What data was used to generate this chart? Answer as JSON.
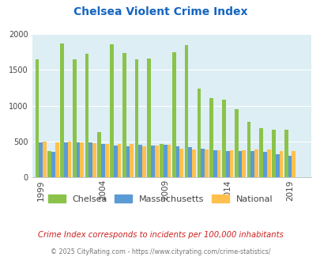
{
  "title": "Chelsea Violent Crime Index",
  "subtitle": "Crime Index corresponds to incidents per 100,000 inhabitants",
  "footer": "© 2025 CityRating.com - https://www.cityrating.com/crime-statistics/",
  "years": [
    1999,
    2000,
    2001,
    2002,
    2003,
    2004,
    2005,
    2006,
    2007,
    2008,
    2009,
    2010,
    2011,
    2012,
    2013,
    2014,
    2015,
    2016,
    2017,
    2018,
    2019,
    2020
  ],
  "chelsea": [
    1650,
    370,
    1870,
    1650,
    1720,
    630,
    1860,
    1730,
    1650,
    1660,
    470,
    1750,
    1840,
    1240,
    1110,
    1080,
    950,
    780,
    690,
    670,
    670,
    0
  ],
  "massachusetts": [
    490,
    360,
    490,
    490,
    490,
    470,
    450,
    430,
    460,
    450,
    460,
    430,
    420,
    400,
    380,
    370,
    370,
    365,
    360,
    325,
    305,
    0
  ],
  "national": [
    500,
    490,
    500,
    490,
    480,
    470,
    470,
    470,
    430,
    450,
    460,
    400,
    385,
    390,
    380,
    375,
    375,
    385,
    385,
    370,
    370,
    0
  ],
  "chelsea_color": "#8bc34a",
  "massachusetts_color": "#5b9bd5",
  "national_color": "#ffc04d",
  "bg_color": "#ddeef4",
  "title_color": "#1565c0",
  "subtitle_color": "#cc2222",
  "footer_color": "#777777",
  "ylim": [
    0,
    2000
  ],
  "yticks": [
    0,
    500,
    1000,
    1500,
    2000
  ],
  "grid_color": "#ffffff",
  "xtick_positions": [
    0,
    5,
    10,
    15,
    20
  ],
  "xtick_labels": [
    "1999",
    "2004",
    "2009",
    "2014",
    "2019"
  ]
}
